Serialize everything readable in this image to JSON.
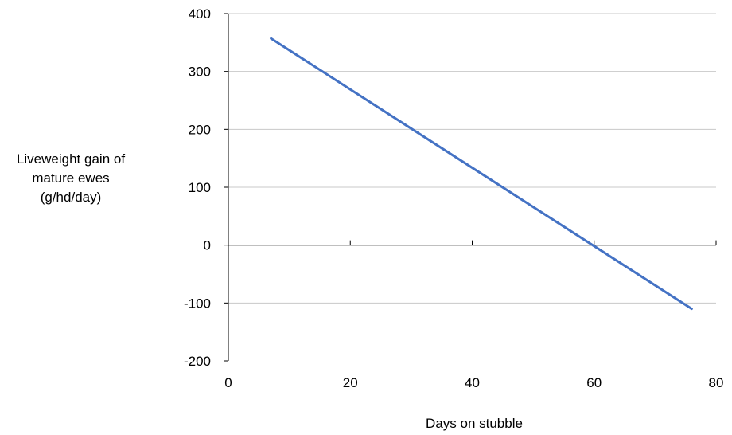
{
  "chart_data": {
    "type": "line",
    "title": "",
    "xlabel": "Days on stubble",
    "ylabel": [
      "Liveweight gain  of",
      "mature ewes",
      "(g/hd/day)"
    ],
    "xlim": [
      0,
      80
    ],
    "ylim": [
      -200,
      400
    ],
    "x_ticks": [
      0,
      20,
      40,
      60,
      80
    ],
    "y_ticks": [
      -200,
      -100,
      0,
      100,
      200,
      300,
      400
    ],
    "grid": "horizontal",
    "legend": "none",
    "series": [
      {
        "color": "#4472c4",
        "points": [
          {
            "x": 7,
            "y": 357
          },
          {
            "x": 76,
            "y": -110
          }
        ]
      }
    ]
  }
}
